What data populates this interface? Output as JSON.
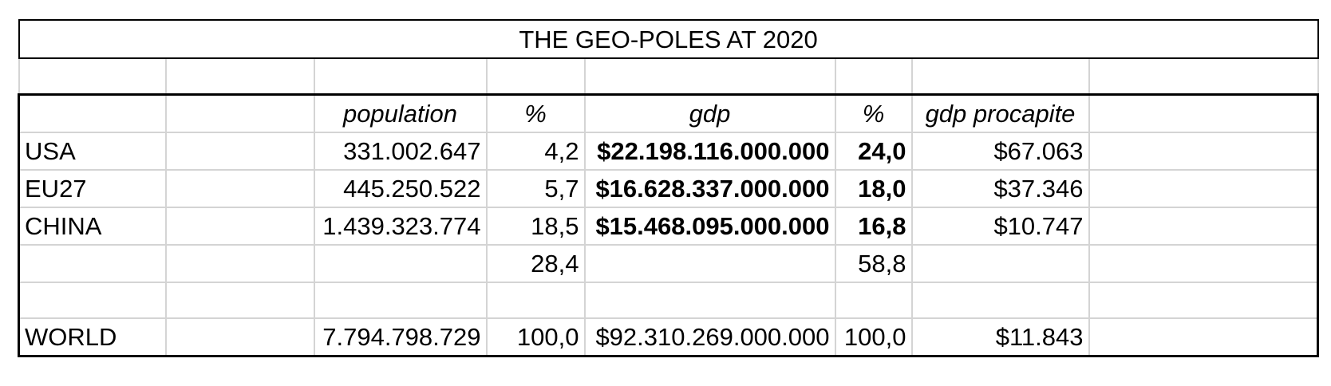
{
  "title": "THE GEO-POLES AT 2020",
  "headers": {
    "population": "population",
    "pct1": "%",
    "gdp": "gdp",
    "pct2": "%",
    "gdp_procapite": "gdp procapite"
  },
  "rows": [
    {
      "label": "USA",
      "population": "331.002.647",
      "pct1": "4,2",
      "gdp": "$22.198.116.000.000",
      "pct2": "24,0",
      "gdp_procapite": "$67.063"
    },
    {
      "label": "EU27",
      "population": "445.250.522",
      "pct1": "5,7",
      "gdp": "$16.628.337.000.000",
      "pct2": "18,0",
      "gdp_procapite": "$37.346"
    },
    {
      "label": "CHINA",
      "population": "1.439.323.774",
      "pct1": "18,5",
      "gdp": "$15.468.095.000.000",
      "pct2": "16,8",
      "gdp_procapite": "$10.747"
    }
  ],
  "subtotal": {
    "pct1": "28,4",
    "pct2": "58,8"
  },
  "world": {
    "label": "WORLD",
    "population": "7.794.798.729",
    "pct1": "100,0",
    "gdp": "$92.310.269.000.000",
    "pct2": "100,0",
    "gdp_procapite": "$11.843"
  }
}
